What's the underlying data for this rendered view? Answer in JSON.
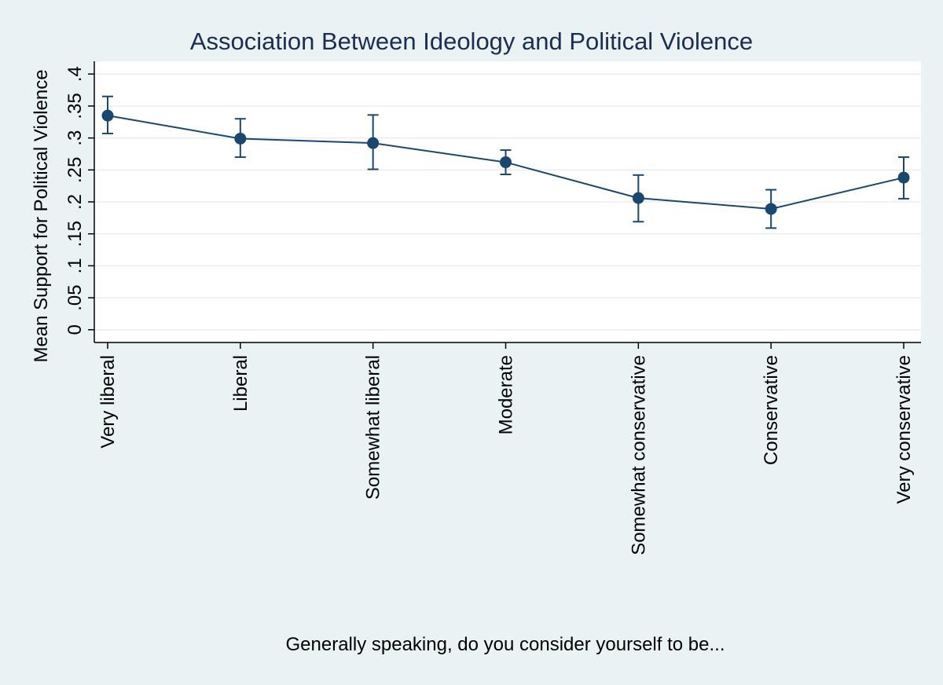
{
  "chart_data": {
    "type": "line",
    "title": "Association Between Ideology and Political Violence",
    "xlabel": "Generally speaking, do you consider yourself to be...",
    "ylabel": "Mean Support for Political Violence",
    "categories": [
      "Very liberal",
      "Liberal",
      "Somewhat liberal",
      "Moderate",
      "Somewhat conservative",
      "Conservative",
      "Very conservative"
    ],
    "series": [
      {
        "name": "Mean support",
        "values": [
          0.335,
          0.299,
          0.292,
          0.262,
          0.206,
          0.189,
          0.238
        ],
        "ci_low": [
          0.307,
          0.27,
          0.251,
          0.243,
          0.169,
          0.159,
          0.205
        ],
        "ci_high": [
          0.365,
          0.33,
          0.336,
          0.281,
          0.242,
          0.219,
          0.27
        ]
      }
    ],
    "yticks": [
      0,
      0.05,
      0.1,
      0.15,
      0.2,
      0.25,
      0.3,
      0.35,
      0.4
    ],
    "ytick_labels": [
      "0",
      ".05",
      ".1",
      ".15",
      ".2",
      ".25",
      ".3",
      ".35",
      ".4"
    ],
    "ylim": [
      -0.02,
      0.42
    ],
    "grid": true,
    "colors": {
      "background": "#eaf2f3",
      "plot_background": "#ffffff",
      "line": "#1a476f",
      "title": "#1c2d55",
      "grid": "#e8eef0"
    }
  }
}
